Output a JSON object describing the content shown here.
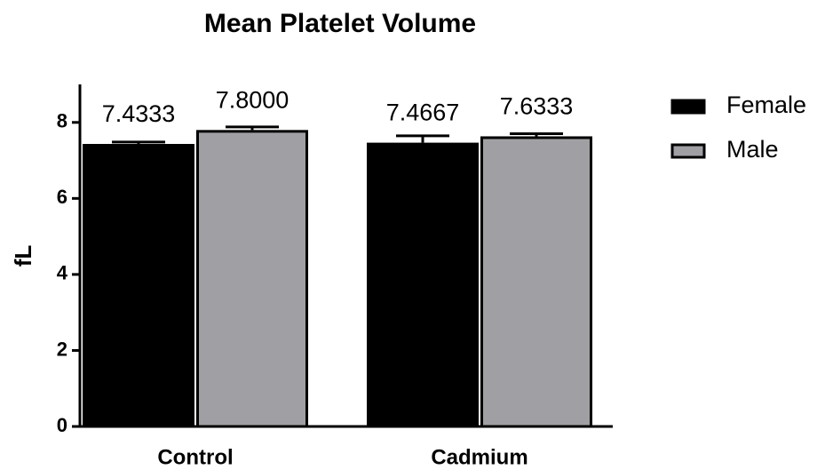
{
  "chart_data": {
    "type": "bar",
    "title": "Mean Platelet Volume",
    "y_label": "fL",
    "categories": [
      "Control",
      "Cadmium"
    ],
    "series": [
      {
        "name": "Female",
        "color": "#000000",
        "values": [
          7.4333,
          7.4667
        ],
        "value_labels": [
          "7.4333",
          "7.4667"
        ],
        "errors": [
          0.05,
          0.18
        ]
      },
      {
        "name": "Male",
        "color": "#a0a0a4",
        "values": [
          7.8,
          7.6333
        ],
        "value_labels": [
          "7.8000",
          "7.6333"
        ],
        "errors": [
          0.08,
          0.07
        ]
      }
    ],
    "ylim": [
      0,
      9
    ],
    "yticks": [
      0,
      2,
      4,
      6,
      8
    ],
    "legend": "right"
  }
}
